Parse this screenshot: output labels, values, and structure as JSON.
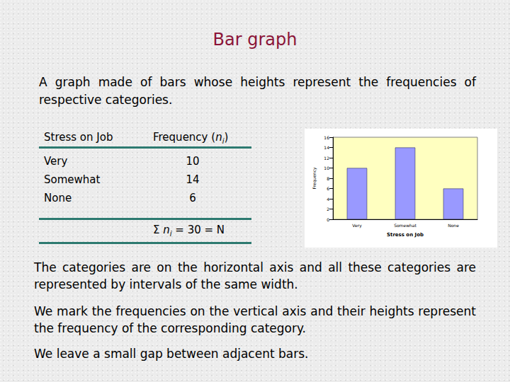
{
  "title": "Bar graph",
  "intro": "A graph made of bars whose heights represent the frequencies of respective categories.",
  "table": {
    "header": [
      "Stress on Job",
      {
        "text": "Frequency (",
        "var": "n",
        "sub": "i",
        "after": ")"
      }
    ],
    "rows": [
      [
        "Very",
        "10"
      ],
      [
        "Somewhat",
        "14"
      ],
      [
        "None",
        "6"
      ]
    ],
    "total": {
      "text": "Σ ",
      "var": "n",
      "sub": "i",
      "after": " = 30 = N"
    }
  },
  "chart_data": {
    "type": "bar",
    "categories": [
      "Very",
      "Somewhat",
      "None"
    ],
    "values": [
      10,
      14,
      6
    ],
    "color": "#9999ff",
    "x_label": "Stress on Job",
    "y_label": "Frequency",
    "ylim": [
      0,
      16
    ],
    "yticks": [
      0,
      2,
      4,
      6,
      8,
      10,
      12,
      14,
      16
    ],
    "grid": false
  },
  "notes": [
    "The categories are on the horizontal axis and all these categories are represented by intervals of the same width.",
    "We mark the frequencies on the vertical axis and their heights represent the frequency of the corresponding category.",
    "We leave a small gap between adjacent bars."
  ]
}
